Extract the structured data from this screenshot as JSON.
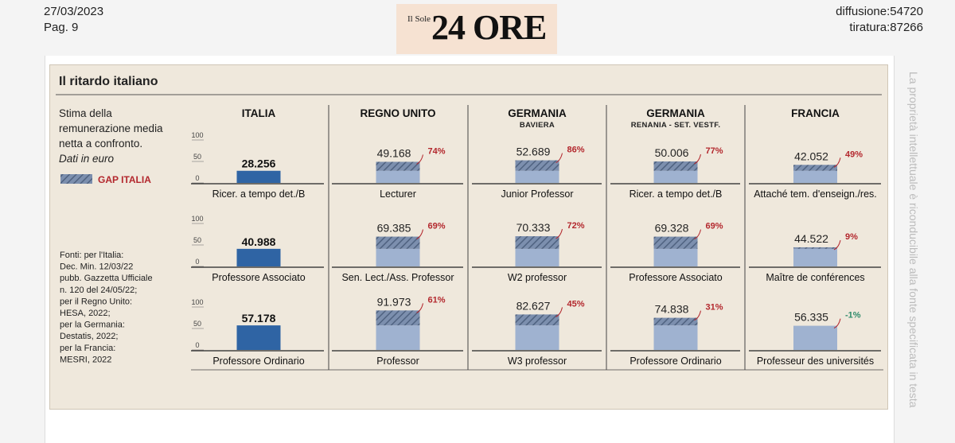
{
  "header": {
    "date": "27/03/2023",
    "page": "Pag. 9",
    "diffusione": "diffusione:54720",
    "tiratura": "tiratura:87266",
    "logo_small": "Il Sole",
    "logo_big": "24 ORE",
    "side_note": "La proprietà intellettuale è riconducibile alla fonte specificata in testa"
  },
  "chart_data": {
    "type": "bar",
    "title": "Il ritardo italiano",
    "description": [
      "Stima della",
      "remunerazione media",
      "netta a confronto.",
      "Dati in euro"
    ],
    "legend": "GAP ITALIA",
    "sources": [
      "Fonti: per l'Italia:",
      "Dec. Min. 12/03/22",
      "pubb. Gazzetta Ufficiale",
      "n. 120 del 24/05/22;",
      "per il Regno Unito:",
      "HESA, 2022;",
      "per la Germania:",
      "Destatis, 2022;",
      "per la Francia:",
      "MESRI, 2022"
    ],
    "ylim": [
      0,
      100
    ],
    "y_ticks": [
      "100",
      "50",
      "0"
    ],
    "unit_note": "valori in migliaia di euro sulla scala 0-100",
    "columns": [
      {
        "name": "ITALIA",
        "sub": ""
      },
      {
        "name": "REGNO UNITO",
        "sub": ""
      },
      {
        "name": "GERMANIA",
        "sub": "BAVIERA"
      },
      {
        "name": "GERMANIA",
        "sub": "RENANIA - SET. VESTF."
      },
      {
        "name": "FRANCIA",
        "sub": ""
      }
    ],
    "rows": [
      [
        {
          "label": "Ricer. a tempo det./B",
          "value": 28256,
          "value_text": "28.256",
          "gap": ""
        },
        {
          "label": "Lecturer",
          "value": 49168,
          "value_text": "49.168",
          "gap": "74%"
        },
        {
          "label": "Junior Professor",
          "value": 52689,
          "value_text": "52.689",
          "gap": "86%"
        },
        {
          "label": "Ricer. a tempo det./B",
          "value": 50006,
          "value_text": "50.006",
          "gap": "77%"
        },
        {
          "label": "Attaché tem. d'enseign./res.",
          "value": 42052,
          "value_text": "42.052",
          "gap": "49%"
        }
      ],
      [
        {
          "label": "Professore Associato",
          "value": 40988,
          "value_text": "40.988",
          "gap": ""
        },
        {
          "label": "Sen. Lect./Ass. Professor",
          "value": 69385,
          "value_text": "69.385",
          "gap": "69%"
        },
        {
          "label": "W2 professor",
          "value": 70333,
          "value_text": "70.333",
          "gap": "72%"
        },
        {
          "label": "Professore Associato",
          "value": 69328,
          "value_text": "69.328",
          "gap": "69%"
        },
        {
          "label": "Maître de conférences",
          "value": 44522,
          "value_text": "44.522",
          "gap": "9%"
        }
      ],
      [
        {
          "label": "Professore Ordinario",
          "value": 57178,
          "value_text": "57.178",
          "gap": ""
        },
        {
          "label": "Professor",
          "value": 91973,
          "value_text": "91.973",
          "gap": "61%"
        },
        {
          "label": "W3 professor",
          "value": 82627,
          "value_text": "82.627",
          "gap": "45%"
        },
        {
          "label": "Professore Ordinario",
          "value": 74838,
          "value_text": "74.838",
          "gap": "31%"
        },
        {
          "label": "Professeur des universités",
          "value": 56335,
          "value_text": "56.335",
          "gap": "-1%"
        }
      ]
    ],
    "colors": {
      "italy": "#2f64a4",
      "bar": "#9fb2d0",
      "gap_hatch": "#5c6f8e",
      "gap_text": "#b3272d",
      "neg_gap_text": "#2e8b6a"
    }
  }
}
